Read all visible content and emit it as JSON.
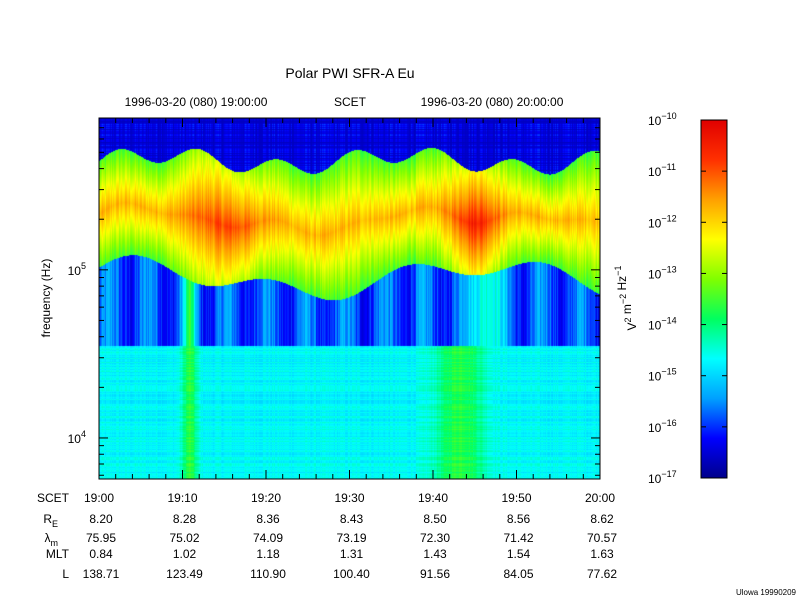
{
  "chart_data": {
    "type": "heatmap",
    "title": "Polar PWI SFR-A Eu",
    "time_header": {
      "start": "1996-03-20 (080) 19:00:00",
      "mid": "SCET",
      "end": "1996-03-20 (080) 20:00:00"
    },
    "ylabel": "frequency (Hz)",
    "y_scale": "log",
    "y_ticks": [
      {
        "value": 10000,
        "base": "10",
        "exp": "4"
      },
      {
        "value": 100000,
        "base": "10",
        "exp": "5"
      }
    ],
    "ylim": [
      5700,
      800000
    ],
    "colorbar": {
      "label_base": "V",
      "label_parts": [
        {
          "text": "V",
          "sup": "2"
        },
        {
          "text": " m",
          "sup": "−2"
        },
        {
          "text": " Hz",
          "sup": "−1"
        }
      ],
      "scale": "log",
      "range": [
        1e-17,
        1e-10
      ],
      "ticks": [
        {
          "base": "10",
          "exp": "−10"
        },
        {
          "base": "10",
          "exp": "−11"
        },
        {
          "base": "10",
          "exp": "−12"
        },
        {
          "base": "10",
          "exp": "−13"
        },
        {
          "base": "10",
          "exp": "−14"
        },
        {
          "base": "10",
          "exp": "−15"
        },
        {
          "base": "10",
          "exp": "−16"
        },
        {
          "base": "10",
          "exp": "−17"
        }
      ],
      "colors": [
        "#00008b",
        "#0000ff",
        "#00a0ff",
        "#00ffff",
        "#00ff60",
        "#80ff00",
        "#ffff00",
        "#ffa000",
        "#ff3000",
        "#e00000"
      ]
    },
    "ephemeris_table": {
      "rows": [
        {
          "label": "SCET",
          "sub": "",
          "values": [
            "19:00",
            "19:10",
            "19:20",
            "19:30",
            "19:40",
            "19:50",
            "20:00"
          ]
        },
        {
          "label": "R",
          "sub": "E",
          "values": [
            "8.20",
            "8.28",
            "8.36",
            "8.43",
            "8.50",
            "8.56",
            "8.62"
          ]
        },
        {
          "label": "λ",
          "sub": "m",
          "values": [
            "75.95",
            "75.02",
            "74.09",
            "73.19",
            "72.30",
            "71.42",
            "70.57"
          ]
        },
        {
          "label": "MLT",
          "sub": "",
          "values": [
            "0.84",
            "1.02",
            "1.18",
            "1.31",
            "1.43",
            "1.54",
            "1.63"
          ]
        },
        {
          "label": "L",
          "sub": "",
          "values": [
            "138.71",
            "123.49",
            "110.90",
            "100.40",
            "91.56",
            "84.05",
            "77.62"
          ]
        }
      ]
    },
    "credit": "Ulowa 19990209"
  }
}
